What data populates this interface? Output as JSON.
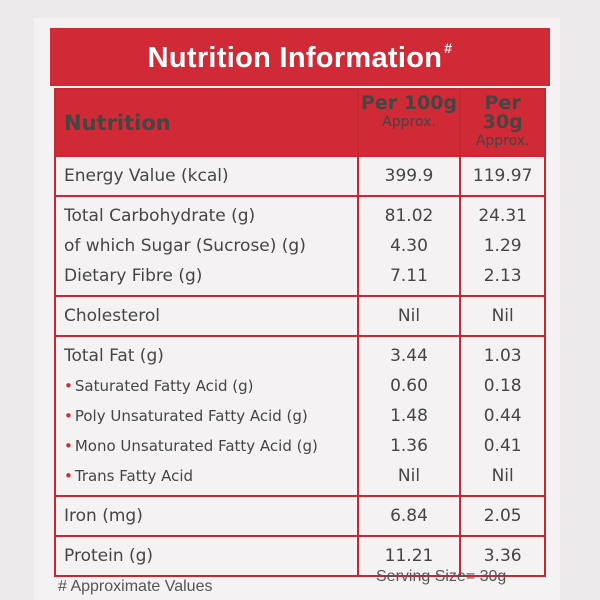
{
  "title": "Nutrition Information",
  "title_mark": "#",
  "header": {
    "name": "Nutrition",
    "col1": {
      "main": "Per 100g",
      "sub": "Approx."
    },
    "col2": {
      "main": "Per 30g",
      "sub": "Approx."
    }
  },
  "rows": [
    {
      "lines": [
        {
          "label": "Energy Value (kcal)",
          "v1": "399.9",
          "v2": "119.97"
        }
      ]
    },
    {
      "lines": [
        {
          "label": "Total Carbohydrate (g)",
          "v1": "81.02",
          "v2": "24.31"
        },
        {
          "label": "of which Sugar (Sucrose) (g)",
          "v1": "4.30",
          "v2": "1.29"
        },
        {
          "label": "Dietary Fibre (g)",
          "v1": "7.11",
          "v2": "2.13"
        }
      ]
    },
    {
      "lines": [
        {
          "label": "Cholesterol",
          "v1": "Nil",
          "v2": "Nil"
        }
      ]
    },
    {
      "lines": [
        {
          "label": "Total Fat (g)",
          "v1": "3.44",
          "v2": "1.03"
        },
        {
          "label": "Saturated Fatty Acid (g)",
          "v1": "0.60",
          "v2": "0.18"
        },
        {
          "label": "Poly Unsaturated Fatty Acid (g)",
          "v1": "1.48",
          "v2": "0.44"
        },
        {
          "label": "Mono Unsaturated Fatty Acid (g)",
          "v1": "1.36",
          "v2": "0.41"
        },
        {
          "label": "Trans Fatty Acid",
          "v1": "Nil",
          "v2": "Nil"
        }
      ]
    },
    {
      "lines": [
        {
          "label": "Iron (mg)",
          "v1": "6.84",
          "v2": "2.05"
        }
      ]
    },
    {
      "lines": [
        {
          "label": "Protein (g)",
          "v1": "11.21",
          "v2": "3.36"
        }
      ]
    }
  ],
  "bullet": "•",
  "footer": {
    "note": "# Approximate Values",
    "serving": "Serving Size= 30g"
  },
  "colors": {
    "accent": "#cf2a36",
    "text": "#454545"
  }
}
